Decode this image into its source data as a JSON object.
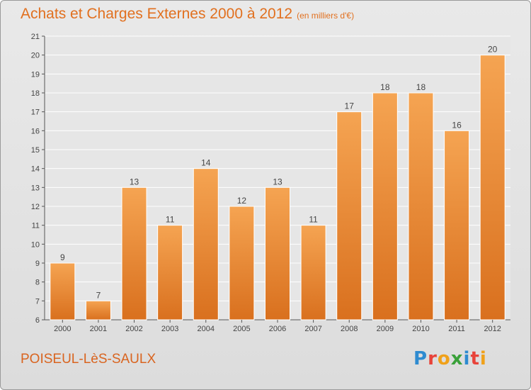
{
  "header": {
    "title": "Achats et Charges Externes 2000 à 2012",
    "unit": "(en milliers d'€)"
  },
  "footer": {
    "commune": "POISEUL-LèS-SAULX",
    "brand_letters": [
      "P",
      "r",
      "o",
      "x",
      "i",
      "t",
      "i"
    ]
  },
  "colors": {
    "bar_top": "#f5a452",
    "bar_bottom": "#d9701e",
    "title": "#e1701f"
  },
  "chart_data": {
    "type": "bar",
    "title": "Achats et Charges Externes 2000 à 2012",
    "xlabel": "",
    "ylabel": "",
    "categories": [
      "2000",
      "2001",
      "2002",
      "2003",
      "2004",
      "2005",
      "2006",
      "2007",
      "2008",
      "2009",
      "2010",
      "2011",
      "2012"
    ],
    "values": [
      9,
      7,
      13,
      11,
      14,
      12,
      13,
      11,
      17,
      18,
      18,
      16,
      20
    ],
    "ylim": [
      6,
      21
    ],
    "yticks": [
      6,
      7,
      8,
      9,
      10,
      11,
      12,
      13,
      14,
      15,
      16,
      17,
      18,
      19,
      20,
      21
    ],
    "grid": "horizontal"
  }
}
